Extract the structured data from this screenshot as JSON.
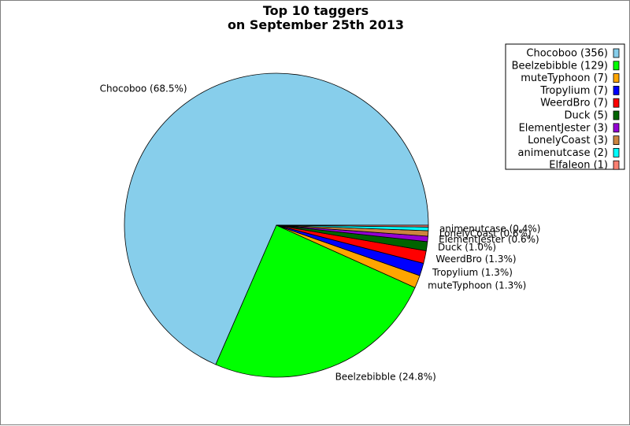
{
  "chart_data": {
    "type": "pie",
    "title": "Top 10 taggers",
    "subtitle": "on September 25th 2013",
    "slices": [
      {
        "label": "Chocoboo",
        "value": 356,
        "percent": "68.5%",
        "color": "#87ceeb"
      },
      {
        "label": "Beelzebibble",
        "value": 129,
        "percent": "24.8%",
        "color": "#00ff00"
      },
      {
        "label": "muteTyphoon",
        "value": 7,
        "percent": "1.3%",
        "color": "#ffa500"
      },
      {
        "label": "Tropylium",
        "value": 7,
        "percent": "1.3%",
        "color": "#0000ff"
      },
      {
        "label": "WeerdBro",
        "value": 7,
        "percent": "1.3%",
        "color": "#ff0000"
      },
      {
        "label": "Duck",
        "value": 5,
        "percent": "1.0%",
        "color": "#006400"
      },
      {
        "label": "ElementJester",
        "value": 3,
        "percent": "0.6%",
        "color": "#9400d3"
      },
      {
        "label": "LonelyCoast",
        "value": 3,
        "percent": "0.6%",
        "color": "#cd853f"
      },
      {
        "label": "animenutcase",
        "value": 2,
        "percent": "0.4%",
        "color": "#00ffff"
      },
      {
        "label": "Elfaleon",
        "value": 1,
        "percent": "",
        "color": "#fa8072"
      }
    ],
    "legend_placement": "top-right"
  }
}
